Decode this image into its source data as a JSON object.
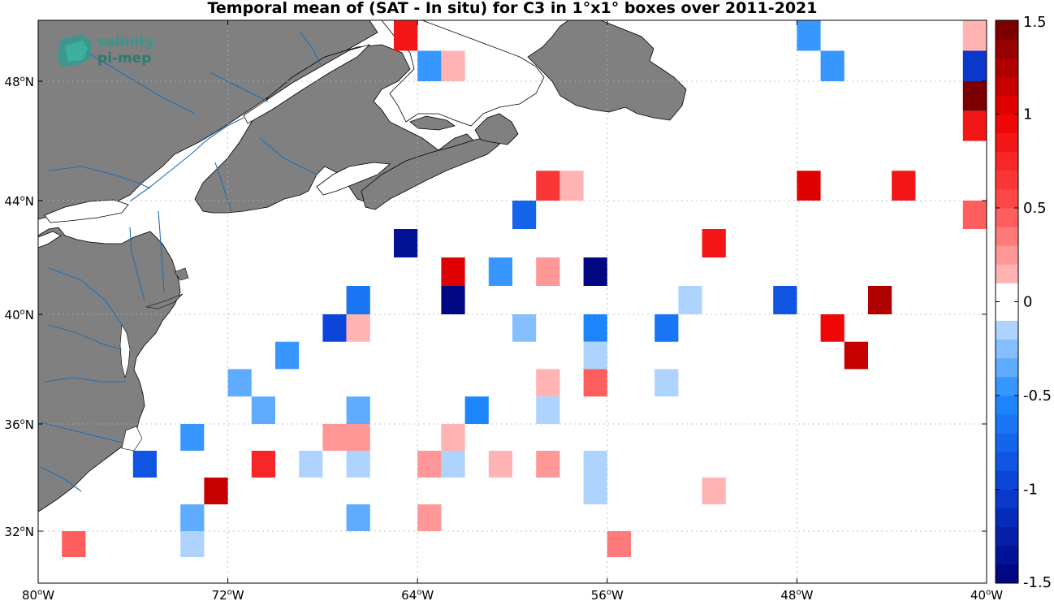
{
  "title": "Temporal mean of (SAT - In situ) for C3 in 1°x1° boxes over 2011-2021",
  "logo": {
    "line1": "salinity",
    "line2": "pi-mep"
  },
  "map": {
    "lon_range": [
      -80,
      -40
    ],
    "lat_range": [
      30,
      50
    ],
    "land_color": "#808080",
    "river_color": "#1f6fb4",
    "grid": "dotted",
    "lon_ticks": [
      {
        "value": -80,
        "num": "80",
        "hemi": "W"
      },
      {
        "value": -72,
        "num": "72",
        "hemi": "W"
      },
      {
        "value": -64,
        "num": "64",
        "hemi": "W"
      },
      {
        "value": -56,
        "num": "56",
        "hemi": "W"
      },
      {
        "value": -48,
        "num": "48",
        "hemi": "W"
      },
      {
        "value": -40,
        "num": "40",
        "hemi": "W"
      }
    ],
    "lat_ticks": [
      {
        "value": 32,
        "num": "32",
        "hemi": "N"
      },
      {
        "value": 36,
        "num": "36",
        "hemi": "N"
      },
      {
        "value": 40,
        "num": "40",
        "hemi": "N"
      },
      {
        "value": 44,
        "num": "44",
        "hemi": "N"
      },
      {
        "value": 48,
        "num": "48",
        "hemi": "N"
      }
    ]
  },
  "colorbar": {
    "range": [
      -1.5,
      1.5
    ],
    "levels": 30,
    "ticks": [
      {
        "value": 1.5,
        "label": "1.5"
      },
      {
        "value": 1,
        "label": "1"
      },
      {
        "value": 0.5,
        "label": "0.5"
      },
      {
        "value": 0,
        "label": "0"
      },
      {
        "value": -0.5,
        "label": "-0.5"
      },
      {
        "value": -1,
        "label": "-1"
      },
      {
        "value": -1.5,
        "label": "-1.5"
      }
    ]
  },
  "chart_data": {
    "type": "heatmap",
    "title": "Temporal mean of (SAT - In situ) for C3 in 1°x1° boxes over 2011-2021",
    "x_unit": "longitude (°E)",
    "y_unit": "latitude (°N)",
    "cell_size_deg": 1,
    "cells": [
      {
        "lon": -64.5,
        "lat": 49.5,
        "value": 0.85
      },
      {
        "lon": -63.5,
        "lat": 48.5,
        "value": -0.45
      },
      {
        "lon": -62.5,
        "lat": 48.5,
        "value": 0.15
      },
      {
        "lon": -47.5,
        "lat": 49.5,
        "value": -0.45
      },
      {
        "lon": -40.5,
        "lat": 49.5,
        "value": 0.15
      },
      {
        "lon": -46.5,
        "lat": 48.5,
        "value": -0.5
      },
      {
        "lon": -40.5,
        "lat": 48.5,
        "value": -1.05
      },
      {
        "lon": -40.5,
        "lat": 47.5,
        "value": 1.4
      },
      {
        "lon": -40.5,
        "lat": 46.5,
        "value": 0.85
      },
      {
        "lon": -58.5,
        "lat": 44.5,
        "value": 0.6
      },
      {
        "lon": -57.5,
        "lat": 44.5,
        "value": 0.15
      },
      {
        "lon": -47.5,
        "lat": 44.5,
        "value": 1.05
      },
      {
        "lon": -43.5,
        "lat": 44.5,
        "value": 0.85
      },
      {
        "lon": -59.5,
        "lat": 43.5,
        "value": -0.75
      },
      {
        "lon": -40.5,
        "lat": 43.5,
        "value": 0.4
      },
      {
        "lon": -64.5,
        "lat": 42.5,
        "value": -1.3
      },
      {
        "lon": -51.5,
        "lat": 42.5,
        "value": 0.9
      },
      {
        "lon": -62.5,
        "lat": 41.5,
        "value": 1.0
      },
      {
        "lon": -60.5,
        "lat": 41.5,
        "value": -0.45
      },
      {
        "lon": -58.5,
        "lat": 41.5,
        "value": 0.25
      },
      {
        "lon": -56.5,
        "lat": 41.5,
        "value": -1.5
      },
      {
        "lon": -66.5,
        "lat": 40.5,
        "value": -0.7
      },
      {
        "lon": -62.5,
        "lat": 40.5,
        "value": -1.45
      },
      {
        "lon": -52.5,
        "lat": 40.5,
        "value": -0.1
      },
      {
        "lon": -48.5,
        "lat": 40.5,
        "value": -0.85
      },
      {
        "lon": -44.5,
        "lat": 40.5,
        "value": 1.25
      },
      {
        "lon": -67.5,
        "lat": 39.5,
        "value": -1.0
      },
      {
        "lon": -66.5,
        "lat": 39.5,
        "value": 0.15
      },
      {
        "lon": -59.5,
        "lat": 39.5,
        "value": -0.25
      },
      {
        "lon": -56.5,
        "lat": 39.5,
        "value": -0.55
      },
      {
        "lon": -53.5,
        "lat": 39.5,
        "value": -0.7
      },
      {
        "lon": -46.5,
        "lat": 39.5,
        "value": 0.95
      },
      {
        "lon": -69.5,
        "lat": 38.5,
        "value": -0.5
      },
      {
        "lon": -56.5,
        "lat": 38.5,
        "value": -0.1
      },
      {
        "lon": -45.5,
        "lat": 38.5,
        "value": 1.15
      },
      {
        "lon": -71.5,
        "lat": 37.5,
        "value": -0.35
      },
      {
        "lon": -58.5,
        "lat": 37.5,
        "value": 0.15
      },
      {
        "lon": -56.5,
        "lat": 37.5,
        "value": 0.45
      },
      {
        "lon": -53.5,
        "lat": 37.5,
        "value": -0.1
      },
      {
        "lon": -70.5,
        "lat": 36.5,
        "value": -0.4
      },
      {
        "lon": -66.5,
        "lat": 36.5,
        "value": -0.4
      },
      {
        "lon": -61.5,
        "lat": 36.5,
        "value": -0.55
      },
      {
        "lon": -58.5,
        "lat": 36.5,
        "value": -0.1
      },
      {
        "lon": -73.5,
        "lat": 35.5,
        "value": -0.5
      },
      {
        "lon": -67.5,
        "lat": 35.5,
        "value": 0.25
      },
      {
        "lon": -66.5,
        "lat": 35.5,
        "value": 0.25
      },
      {
        "lon": -62.5,
        "lat": 35.5,
        "value": 0.15
      },
      {
        "lon": -75.5,
        "lat": 34.5,
        "value": -0.85
      },
      {
        "lon": -70.5,
        "lat": 34.5,
        "value": 0.7
      },
      {
        "lon": -68.5,
        "lat": 34.5,
        "value": -0.1
      },
      {
        "lon": -66.5,
        "lat": 34.5,
        "value": -0.1
      },
      {
        "lon": -63.5,
        "lat": 34.5,
        "value": 0.25
      },
      {
        "lon": -62.5,
        "lat": 34.5,
        "value": -0.1
      },
      {
        "lon": -60.5,
        "lat": 34.5,
        "value": 0.15
      },
      {
        "lon": -58.5,
        "lat": 34.5,
        "value": 0.25
      },
      {
        "lon": -56.5,
        "lat": 34.5,
        "value": -0.2
      },
      {
        "lon": -72.5,
        "lat": 33.5,
        "value": 1.1
      },
      {
        "lon": -56.5,
        "lat": 33.5,
        "value": -0.1
      },
      {
        "lon": -51.5,
        "lat": 33.5,
        "value": 0.15
      },
      {
        "lon": -73.5,
        "lat": 32.5,
        "value": -0.35
      },
      {
        "lon": -66.5,
        "lat": 32.5,
        "value": -0.3
      },
      {
        "lon": -63.5,
        "lat": 32.5,
        "value": 0.25
      },
      {
        "lon": -78.5,
        "lat": 31.5,
        "value": 0.4
      },
      {
        "lon": -73.5,
        "lat": 31.5,
        "value": -0.1
      },
      {
        "lon": -55.5,
        "lat": 31.5,
        "value": 0.3
      }
    ]
  }
}
